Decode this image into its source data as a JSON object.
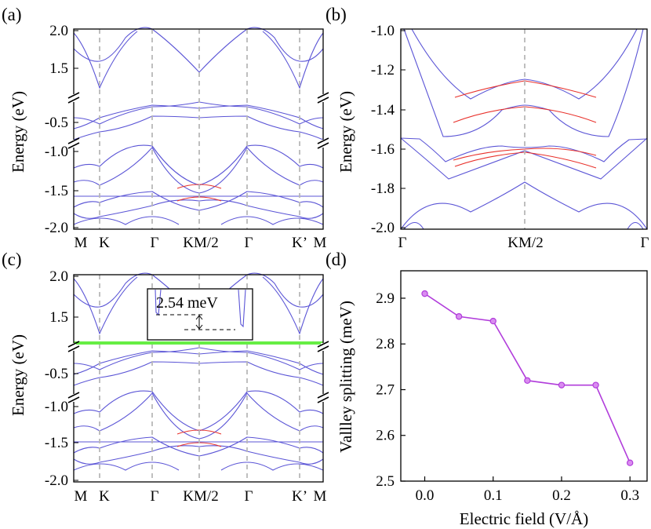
{
  "figure": {
    "panel_labels": [
      "(a)",
      "(b)",
      "(c)",
      "(d)"
    ],
    "band_ylabel": "Energy (eV)",
    "inset_label": "2.54 meV"
  },
  "chart_data": [
    {
      "panel": "(a)",
      "type": "line",
      "description_kind": "band structure with broken energy axis",
      "ylabel": "Energy (eV)",
      "ytick_labels": [
        "2.0",
        "1.5",
        "-0.5",
        "-1.0",
        "-1.5",
        "-2.0"
      ],
      "kpath_labels": [
        "M",
        "K",
        "Γ",
        "KM/2",
        "Γ",
        "K’",
        "M"
      ],
      "y_segments": [
        [
          1.2,
          2.0
        ],
        [
          -0.8,
          -0.2
        ],
        [
          -2.0,
          -0.85
        ]
      ]
    },
    {
      "panel": "(b)",
      "type": "line",
      "description_kind": "zoomed band structure, two spin channels",
      "ylabel": "Energy (eV)",
      "ytick_labels": [
        "-1.0",
        "-1.2",
        "-1.4",
        "-1.6",
        "-1.8",
        "-2.0"
      ],
      "ylim": [
        -2.0,
        -1.0
      ],
      "kpath_labels": [
        "Γ",
        "KM/2",
        "Γ"
      ]
    },
    {
      "panel": "(c)",
      "type": "line",
      "description_kind": "band structure with broken energy axis and highlighted band",
      "ylabel": "Energy (eV)",
      "ytick_labels": [
        "2.0",
        "1.5",
        "-0.5",
        "-1.0",
        "-1.5",
        "-2.0"
      ],
      "kpath_labels": [
        "M",
        "K",
        "Γ",
        "KM/2",
        "Γ",
        "K’",
        "M"
      ],
      "highlight_energy": 1.16,
      "highlight_color": "#66ee44"
    },
    {
      "panel": "(d)",
      "type": "line",
      "title": "",
      "xlabel": "Electric field (V/Å)",
      "ylabel": "Vallley splitting (meV)",
      "x": [
        0.0,
        0.05,
        0.1,
        0.15,
        0.2,
        0.25,
        0.3
      ],
      "values": [
        2.91,
        2.86,
        2.85,
        2.72,
        2.71,
        2.71,
        2.54
      ],
      "xlim": [
        -0.035,
        0.325
      ],
      "ylim": [
        2.5,
        2.96
      ],
      "xtick_labels": [
        "0.0",
        "0.1",
        "0.2",
        "0.3"
      ],
      "ytick_labels": [
        "2.5",
        "2.6",
        "2.7",
        "2.8",
        "2.9"
      ],
      "color": "#b13ddb"
    }
  ]
}
